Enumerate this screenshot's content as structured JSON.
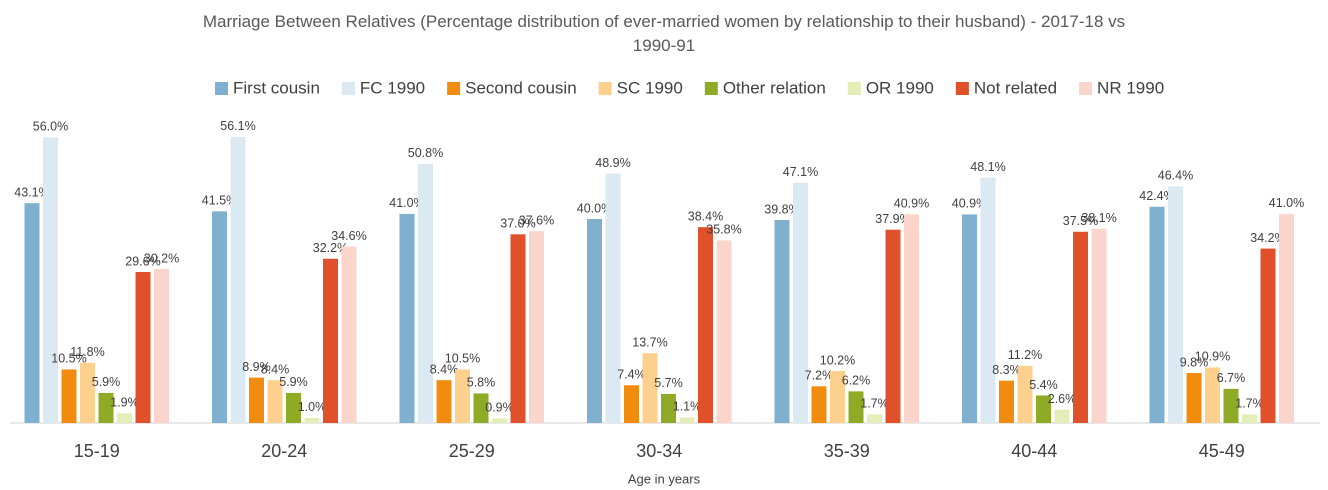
{
  "chart_data": {
    "type": "bar",
    "title": "Marriage Between Relatives (Percentage distribution of ever-married women by relationship to their husband) - 2017-18 vs 1990-91",
    "x_label": "Age in years",
    "categories": [
      "15-19",
      "20-24",
      "25-29",
      "30-34",
      "35-39",
      "40-44",
      "45-49"
    ],
    "series": [
      {
        "name": "First cousin",
        "color": "#7fb0d0",
        "values": [
          43.1,
          41.5,
          41.0,
          40.0,
          39.8,
          40.9,
          42.4
        ],
        "value_labels": [
          "43.1%",
          "41.5%",
          "41.0%",
          "40.0%",
          "39.8%",
          "40.9%",
          "42.4%"
        ]
      },
      {
        "name": "FC 1990",
        "color": "#dbe9f3",
        "values": [
          56.0,
          56.1,
          50.8,
          48.9,
          47.1,
          48.1,
          46.4
        ],
        "value_labels": [
          "56.0%",
          "56.1%",
          "50.8%",
          "48.9%",
          "47.1%",
          "48.1%",
          "46.4%"
        ]
      },
      {
        "name": "Second cousin",
        "color": "#f28c0f",
        "values": [
          10.5,
          8.9,
          8.4,
          7.4,
          7.2,
          8.3,
          9.8
        ],
        "value_labels": [
          "10.5%",
          "8.9%",
          "8.4%",
          "7.4%",
          "7.2%",
          "8.3%",
          "9.8%"
        ]
      },
      {
        "name": "SC 1990",
        "color": "#fdd08e",
        "values": [
          11.8,
          8.4,
          10.5,
          13.7,
          10.2,
          11.2,
          10.9
        ],
        "value_labels": [
          "11.8%",
          "8.4%",
          "10.5%",
          "13.7%",
          "10.2%",
          "11.2%",
          "10.9%"
        ]
      },
      {
        "name": "Other relation",
        "color": "#8faa24",
        "values": [
          5.9,
          5.9,
          5.8,
          5.7,
          6.2,
          5.4,
          6.7
        ],
        "value_labels": [
          "5.9%",
          "5.9%",
          "5.8%",
          "5.7%",
          "6.2%",
          "5.4%",
          "6.7%"
        ]
      },
      {
        "name": "OR 1990",
        "color": "#e3edb8",
        "values": [
          1.9,
          1.0,
          0.9,
          1.1,
          1.7,
          2.6,
          1.7
        ],
        "value_labels": [
          "1.9%",
          "1.0%",
          "0.9%",
          "1.1%",
          "1.7%",
          "2.6%",
          "1.7%"
        ]
      },
      {
        "name": "Not related",
        "color": "#e0502a",
        "values": [
          29.6,
          32.2,
          37.0,
          38.4,
          37.9,
          37.5,
          34.2
        ],
        "value_labels": [
          "29.6%",
          "32.2%",
          "37.0%",
          "38.4%",
          "37.9%",
          "37.5%",
          "34.2%"
        ]
      },
      {
        "name": "NR 1990",
        "color": "#fbd5cc",
        "values": [
          30.2,
          34.6,
          37.6,
          35.8,
          40.9,
          38.1,
          41.0
        ],
        "value_labels": [
          "30.2%",
          "34.6%",
          "37.6%",
          "35.8%",
          "40.9%",
          "38.1%",
          "41.0%"
        ]
      }
    ]
  }
}
